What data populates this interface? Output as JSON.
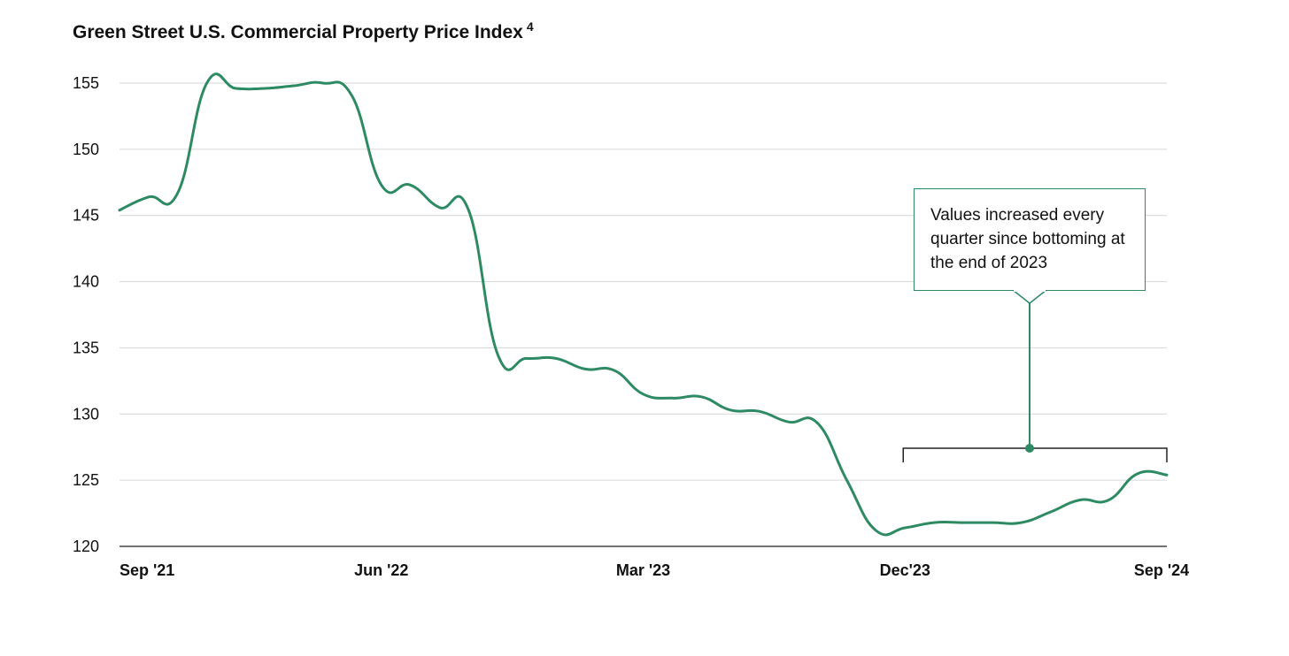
{
  "chart_data": {
    "type": "line",
    "title": "Green Street U.S. Commercial Property Price Index",
    "title_footnote": "4",
    "xlabel": "",
    "ylabel": "",
    "ylim": [
      120,
      155
    ],
    "y_ticks": [
      155,
      150,
      145,
      140,
      135,
      130,
      125,
      120
    ],
    "x_tick_labels": [
      "Sep '21",
      "Jun '22",
      "Mar '23",
      "Dec'23",
      "Sep '24"
    ],
    "x_range": [
      "2021-09",
      "2024-09"
    ],
    "grid": "horizontal",
    "legend": "none",
    "line_color": "#2e8a63",
    "series": [
      {
        "x": [
          "2021-09",
          "2021-10",
          "2021-11",
          "2021-12",
          "2022-01",
          "2022-02",
          "2022-03",
          "2022-04",
          "2022-05",
          "2022-06",
          "2022-07",
          "2022-08",
          "2022-09",
          "2022-10",
          "2022-11",
          "2022-12",
          "2023-01",
          "2023-02",
          "2023-03",
          "2023-04",
          "2023-05",
          "2023-06",
          "2023-07",
          "2023-08",
          "2023-09",
          "2023-10",
          "2023-11",
          "2023-12",
          "2024-01",
          "2024-02",
          "2024-03",
          "2024-04",
          "2024-05",
          "2024-06",
          "2024-07",
          "2024-08",
          "2024-09"
        ],
        "values": [
          145.4,
          146.4,
          146.7,
          155.0,
          154.6,
          154.6,
          154.8,
          155.0,
          154.0,
          147.3,
          147.3,
          145.6,
          145.4,
          134.5,
          134.2,
          134.2,
          133.4,
          133.3,
          131.5,
          131.2,
          131.3,
          130.3,
          130.2,
          129.4,
          129.3,
          125.0,
          121.2,
          121.4,
          121.8,
          121.8,
          121.8,
          121.8,
          122.6,
          123.5,
          123.5,
          125.5,
          125.4
        ]
      }
    ],
    "annotation": {
      "text": "Values increased every quarter since bottoming at the end of 2023",
      "bracket_from": "2023-12",
      "bracket_to": "2024-09"
    }
  }
}
